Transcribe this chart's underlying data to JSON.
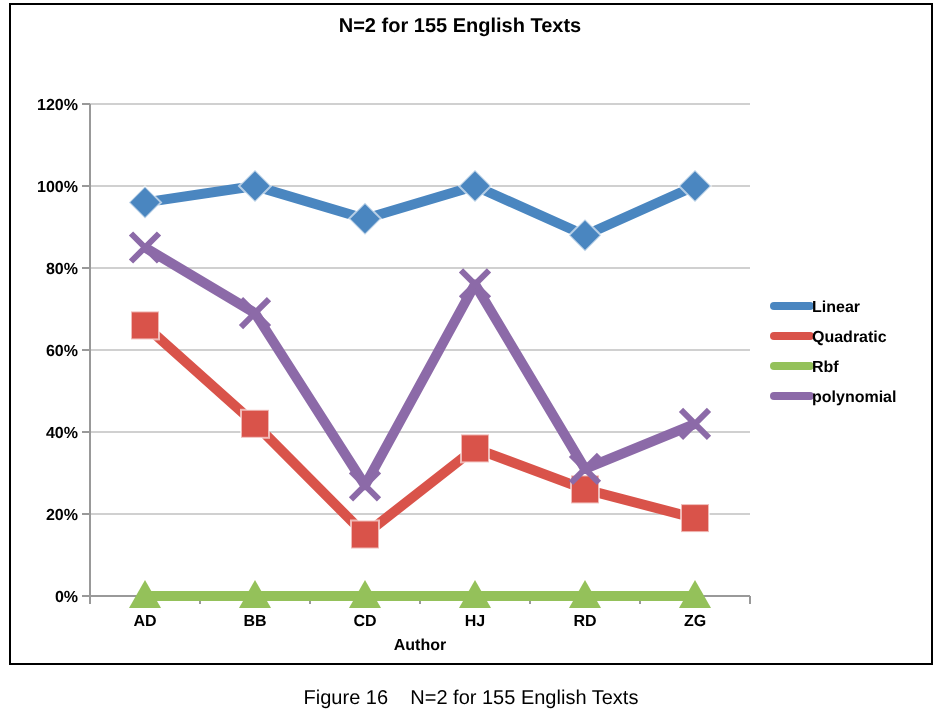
{
  "chart_data": {
    "type": "line",
    "title": "N=2 for 155 English Texts",
    "xlabel": "Author",
    "categories": [
      "AD",
      "BB",
      "CD",
      "HJ",
      "RD",
      "ZG"
    ],
    "series": [
      {
        "name": "Linear",
        "color": "#4a86c0",
        "marker": "diamond",
        "values": [
          96,
          100,
          92,
          100,
          88,
          100
        ]
      },
      {
        "name": "Quadratic",
        "color": "#d9534a",
        "marker": "square",
        "values": [
          66,
          42,
          15,
          36,
          26,
          19
        ]
      },
      {
        "name": "Rbf",
        "color": "#94c15a",
        "marker": "triangle",
        "values": [
          0,
          0,
          0,
          0,
          0,
          0
        ]
      },
      {
        "name": "polynomial",
        "color": "#8c6aa8",
        "marker": "cross",
        "values": [
          85,
          69,
          27,
          76,
          31,
          42
        ]
      }
    ],
    "ylim": [
      0,
      120
    ],
    "yticks": [
      {
        "value": 0,
        "label": "0%"
      },
      {
        "value": 20,
        "label": "20%"
      },
      {
        "value": 40,
        "label": "40%"
      },
      {
        "value": 60,
        "label": "60%"
      },
      {
        "value": 80,
        "label": "80%"
      },
      {
        "value": 100,
        "label": "100%"
      },
      {
        "value": 120,
        "label": "120%"
      }
    ],
    "grid": "y",
    "legend": "right",
    "line_style": "solid",
    "annotations": [
      "Figure 16    N=2 for 155 English Texts"
    ]
  }
}
